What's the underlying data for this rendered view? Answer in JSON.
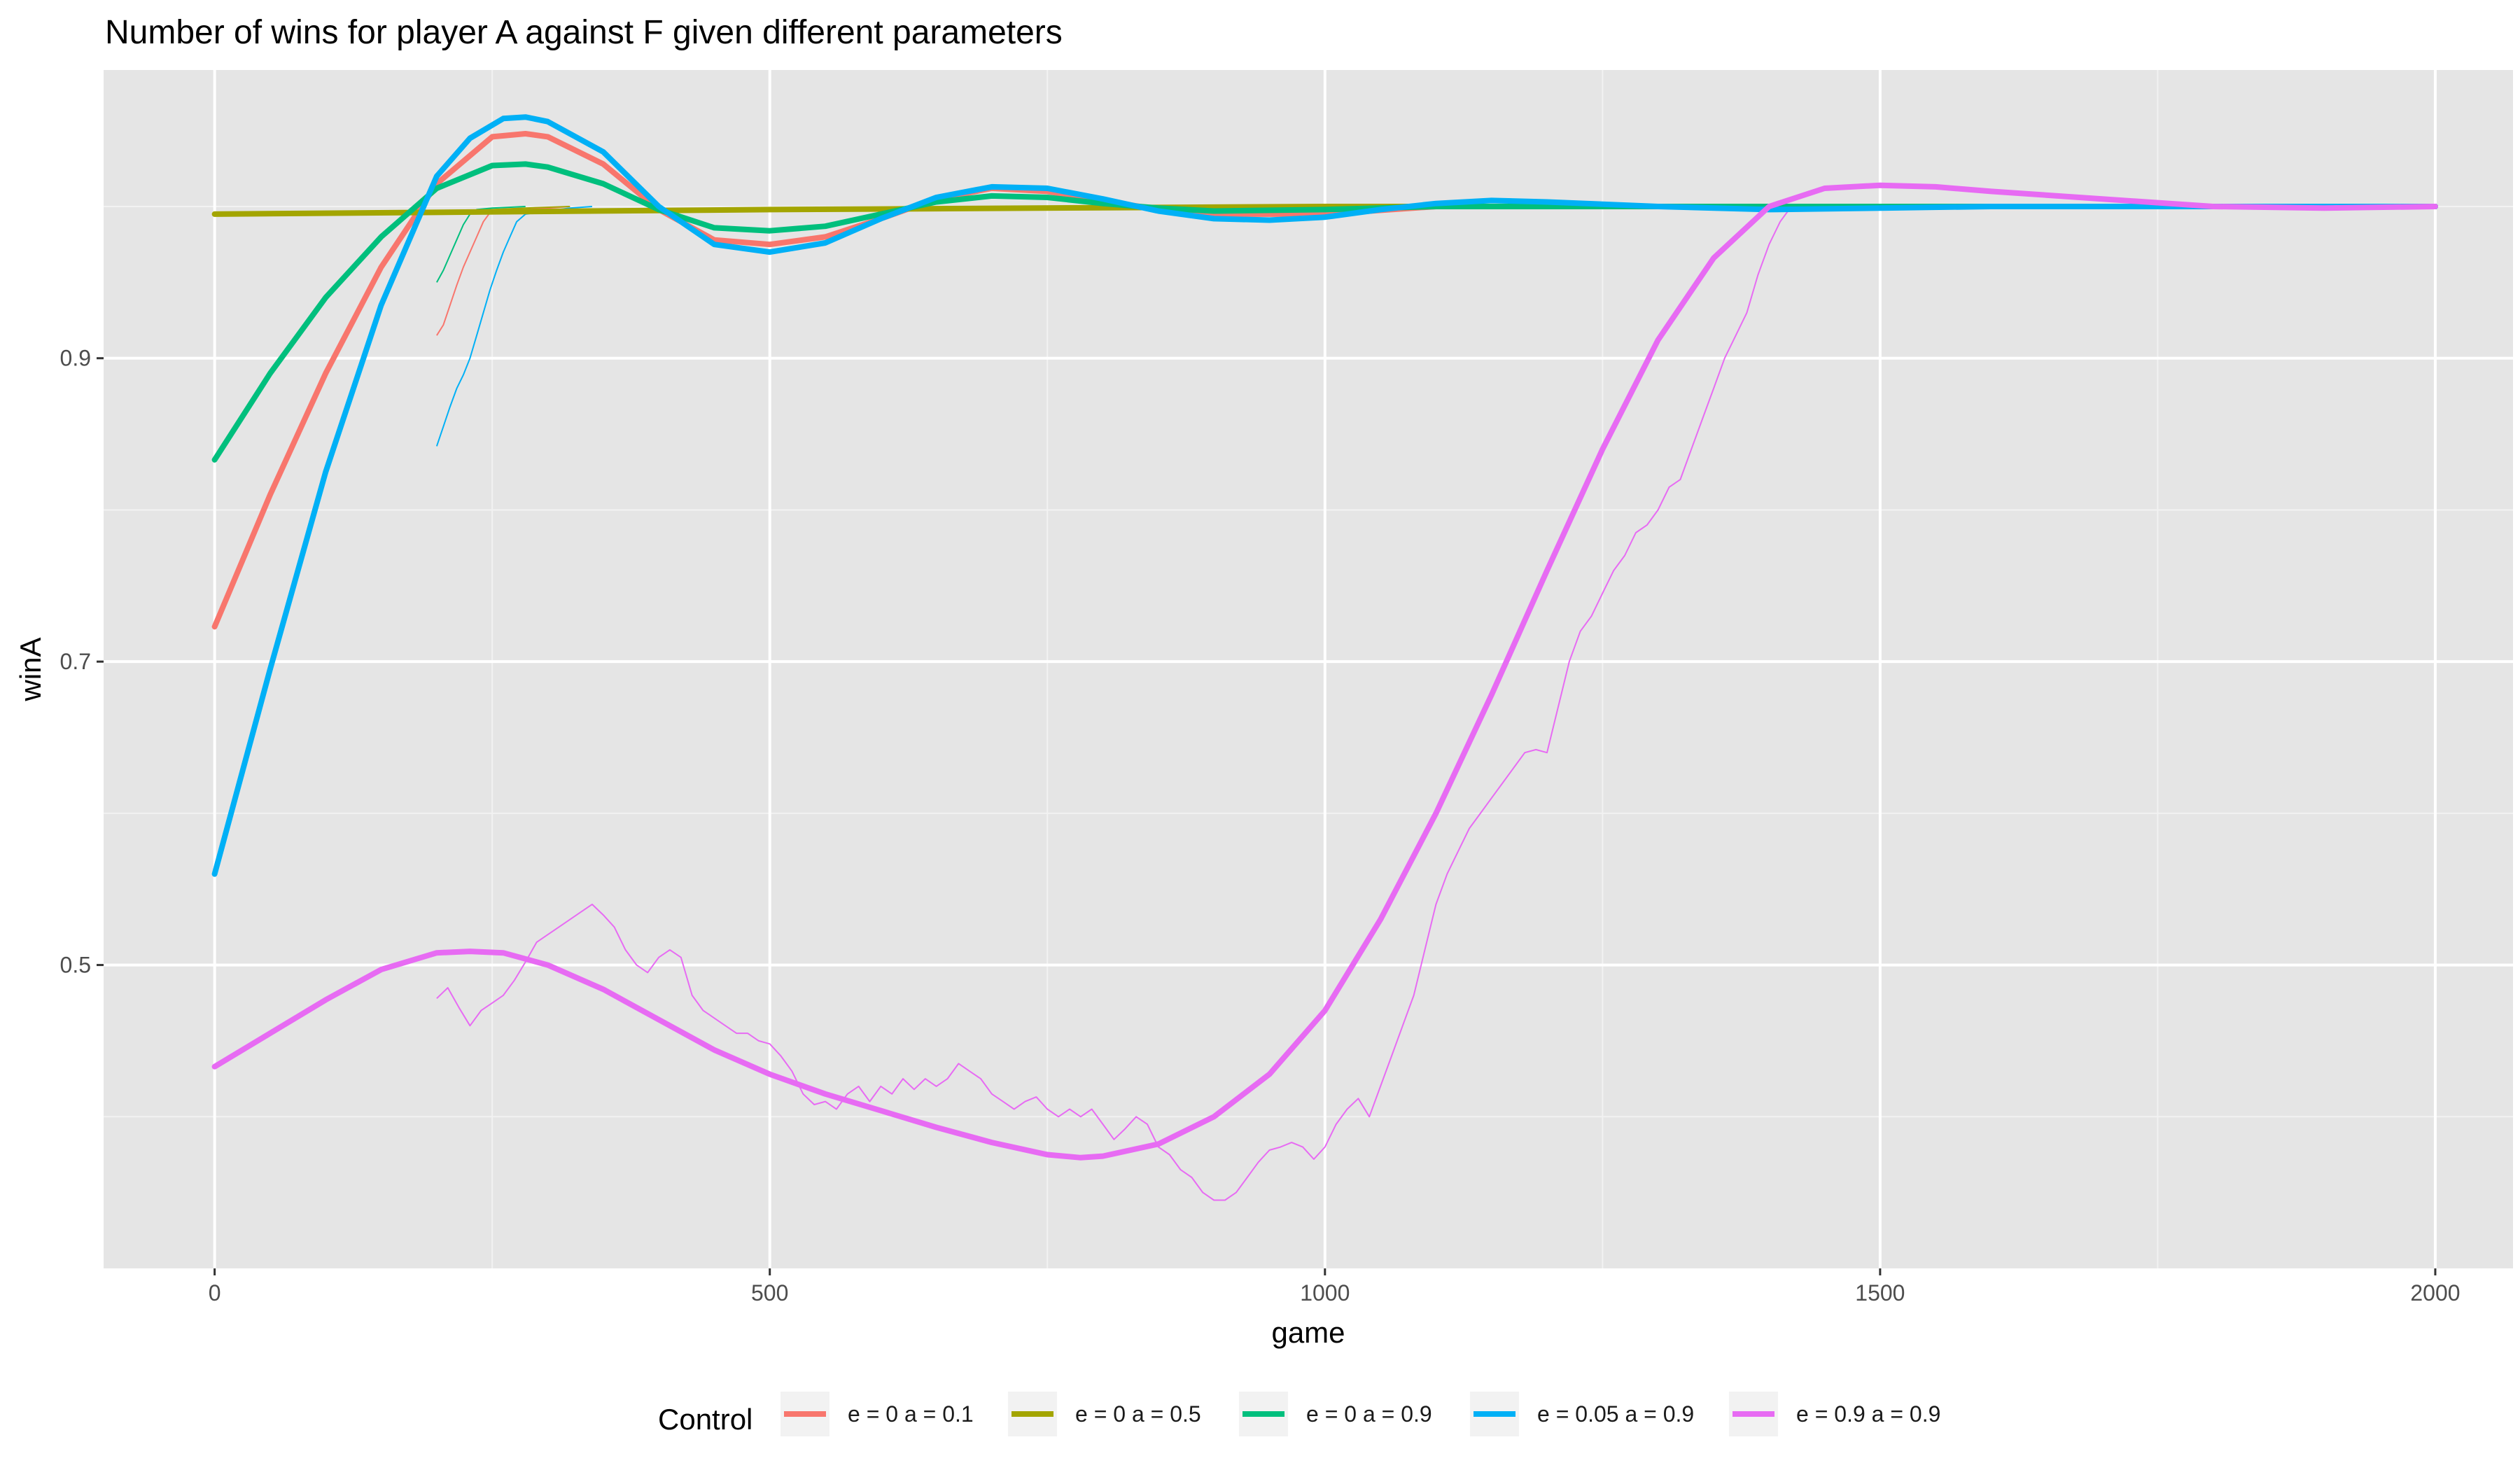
{
  "chart_data": {
    "type": "line",
    "title": "Number of wins for player A against F given different parameters",
    "xlabel": "game",
    "ylabel": "winA",
    "xlim": [
      -100,
      2070
    ],
    "ylim": [
      0.3,
      1.09
    ],
    "x_ticks": [
      0,
      500,
      1000,
      1500,
      2000
    ],
    "x_tick_labels": [
      "0",
      "500",
      "1000",
      "1500",
      "2000"
    ],
    "y_ticks": [
      0.5,
      0.7,
      0.9
    ],
    "y_tick_labels": [
      "0.5",
      "0.7",
      "0.9"
    ],
    "grid": true,
    "legend": {
      "title": "Control",
      "position": "bottom",
      "entries": [
        "e = 0 a = 0.1",
        "e = 0 a = 0.5",
        "e = 0 a = 0.9",
        "e = 0.05 a = 0.9",
        "e = 0.9 a = 0.9"
      ]
    },
    "series": [
      {
        "name": "e = 0 a = 0.1",
        "color": "#F8766D",
        "smooth": [
          [
            0,
            0.723
          ],
          [
            50,
            0.81
          ],
          [
            100,
            0.89
          ],
          [
            150,
            0.96
          ],
          [
            200,
            1.015
          ],
          [
            250,
            1.046
          ],
          [
            280,
            1.048
          ],
          [
            300,
            1.046
          ],
          [
            350,
            1.028
          ],
          [
            400,
            0.998
          ],
          [
            450,
            0.978
          ],
          [
            500,
            0.975
          ],
          [
            550,
            0.98
          ],
          [
            600,
            0.992
          ],
          [
            650,
            1.005
          ],
          [
            700,
            1.012
          ],
          [
            750,
            1.01
          ],
          [
            800,
            1.004
          ],
          [
            850,
            0.998
          ],
          [
            900,
            0.995
          ],
          [
            1000,
            0.995
          ],
          [
            1100,
            1.0
          ],
          [
            1200,
            1.0
          ],
          [
            1400,
            1.0
          ],
          [
            1600,
            1.0
          ],
          [
            1800,
            1.0
          ],
          [
            2000,
            1.0
          ]
        ],
        "raw": [
          [
            200,
            0.915
          ],
          [
            206,
            0.922
          ],
          [
            212,
            0.935
          ],
          [
            218,
            0.948
          ],
          [
            224,
            0.96
          ],
          [
            230,
            0.97
          ],
          [
            236,
            0.98
          ],
          [
            242,
            0.99
          ],
          [
            248,
            0.996
          ],
          [
            260,
            0.997
          ],
          [
            280,
            0.998
          ],
          [
            300,
            0.999
          ],
          [
            320,
            1.0
          ]
        ]
      },
      {
        "name": "e = 0 a = 0.5",
        "color": "#A3A500",
        "smooth": [
          [
            0,
            0.995
          ],
          [
            500,
            0.998
          ],
          [
            1000,
            1.0
          ],
          [
            1500,
            1.0
          ],
          [
            2000,
            1.0
          ]
        ],
        "raw": [
          [
            200,
            0.996
          ],
          [
            220,
            0.997
          ],
          [
            250,
            0.998
          ],
          [
            280,
            0.999
          ],
          [
            320,
            1.0
          ]
        ]
      },
      {
        "name": "e = 0 a = 0.9",
        "color": "#00BF7D",
        "smooth": [
          [
            0,
            0.833
          ],
          [
            50,
            0.89
          ],
          [
            100,
            0.94
          ],
          [
            150,
            0.98
          ],
          [
            200,
            1.012
          ],
          [
            250,
            1.027
          ],
          [
            280,
            1.028
          ],
          [
            300,
            1.026
          ],
          [
            350,
            1.015
          ],
          [
            400,
            0.998
          ],
          [
            450,
            0.986
          ],
          [
            500,
            0.984
          ],
          [
            550,
            0.987
          ],
          [
            600,
            0.995
          ],
          [
            650,
            1.003
          ],
          [
            700,
            1.007
          ],
          [
            750,
            1.006
          ],
          [
            800,
            1.002
          ],
          [
            850,
            0.999
          ],
          [
            900,
            0.997
          ],
          [
            1000,
            0.998
          ],
          [
            1100,
            1.0
          ],
          [
            1400,
            1.0
          ],
          [
            1600,
            1.0
          ],
          [
            1800,
            1.0
          ],
          [
            2000,
            1.0
          ]
        ],
        "raw": [
          [
            200,
            0.95
          ],
          [
            206,
            0.958
          ],
          [
            212,
            0.968
          ],
          [
            218,
            0.978
          ],
          [
            224,
            0.988
          ],
          [
            230,
            0.995
          ],
          [
            236,
            0.998
          ],
          [
            250,
            0.999
          ],
          [
            280,
            1.0
          ]
        ]
      },
      {
        "name": "e = 0.05 a = 0.9",
        "color": "#00B0F6",
        "smooth": [
          [
            0,
            0.56
          ],
          [
            50,
            0.695
          ],
          [
            100,
            0.825
          ],
          [
            150,
            0.935
          ],
          [
            200,
            1.02
          ],
          [
            230,
            1.045
          ],
          [
            260,
            1.058
          ],
          [
            280,
            1.059
          ],
          [
            300,
            1.056
          ],
          [
            350,
            1.036
          ],
          [
            400,
            1.0
          ],
          [
            450,
            0.975
          ],
          [
            500,
            0.97
          ],
          [
            550,
            0.976
          ],
          [
            600,
            0.992
          ],
          [
            650,
            1.006
          ],
          [
            700,
            1.013
          ],
          [
            750,
            1.012
          ],
          [
            800,
            1.005
          ],
          [
            850,
            0.997
          ],
          [
            900,
            0.992
          ],
          [
            950,
            0.991
          ],
          [
            1000,
            0.993
          ],
          [
            1050,
            0.998
          ],
          [
            1100,
            1.002
          ],
          [
            1150,
            1.004
          ],
          [
            1200,
            1.003
          ],
          [
            1300,
            1.0
          ],
          [
            1400,
            0.998
          ],
          [
            1500,
            0.999
          ],
          [
            1600,
            1.0
          ],
          [
            1800,
            1.0
          ],
          [
            2000,
            1.0
          ]
        ],
        "raw": [
          [
            200,
            0.842
          ],
          [
            206,
            0.855
          ],
          [
            212,
            0.868
          ],
          [
            218,
            0.88
          ],
          [
            224,
            0.889
          ],
          [
            230,
            0.9
          ],
          [
            236,
            0.915
          ],
          [
            242,
            0.93
          ],
          [
            248,
            0.945
          ],
          [
            254,
            0.958
          ],
          [
            260,
            0.97
          ],
          [
            266,
            0.98
          ],
          [
            272,
            0.99
          ],
          [
            280,
            0.995
          ],
          [
            300,
            0.997
          ],
          [
            320,
            0.999
          ],
          [
            340,
            1.0
          ]
        ]
      },
      {
        "name": "e = 0.9 a = 0.9",
        "color": "#E76BF3",
        "smooth": [
          [
            0,
            0.433
          ],
          [
            50,
            0.455
          ],
          [
            100,
            0.477
          ],
          [
            150,
            0.497
          ],
          [
            200,
            0.508
          ],
          [
            230,
            0.509
          ],
          [
            260,
            0.508
          ],
          [
            300,
            0.5
          ],
          [
            350,
            0.484
          ],
          [
            400,
            0.464
          ],
          [
            450,
            0.444
          ],
          [
            500,
            0.428
          ],
          [
            550,
            0.415
          ],
          [
            600,
            0.404
          ],
          [
            650,
            0.393
          ],
          [
            700,
            0.383
          ],
          [
            750,
            0.375
          ],
          [
            780,
            0.373
          ],
          [
            800,
            0.374
          ],
          [
            850,
            0.382
          ],
          [
            900,
            0.4
          ],
          [
            950,
            0.428
          ],
          [
            1000,
            0.47
          ],
          [
            1050,
            0.53
          ],
          [
            1100,
            0.6
          ],
          [
            1150,
            0.678
          ],
          [
            1200,
            0.76
          ],
          [
            1250,
            0.84
          ],
          [
            1300,
            0.912
          ],
          [
            1350,
            0.966
          ],
          [
            1400,
            1.0
          ],
          [
            1450,
            1.012
          ],
          [
            1500,
            1.014
          ],
          [
            1550,
            1.013
          ],
          [
            1600,
            1.01
          ],
          [
            1700,
            1.005
          ],
          [
            1800,
            1.0
          ],
          [
            1900,
            0.999
          ],
          [
            2000,
            1.0
          ]
        ],
        "raw": [
          [
            200,
            0.478
          ],
          [
            210,
            0.485
          ],
          [
            220,
            0.472
          ],
          [
            230,
            0.46
          ],
          [
            240,
            0.47
          ],
          [
            250,
            0.475
          ],
          [
            260,
            0.48
          ],
          [
            270,
            0.49
          ],
          [
            280,
            0.502
          ],
          [
            290,
            0.515
          ],
          [
            300,
            0.52
          ],
          [
            310,
            0.525
          ],
          [
            320,
            0.53
          ],
          [
            330,
            0.535
          ],
          [
            340,
            0.54
          ],
          [
            350,
            0.533
          ],
          [
            360,
            0.525
          ],
          [
            370,
            0.51
          ],
          [
            380,
            0.5
          ],
          [
            390,
            0.495
          ],
          [
            400,
            0.505
          ],
          [
            410,
            0.51
          ],
          [
            420,
            0.505
          ],
          [
            430,
            0.48
          ],
          [
            440,
            0.47
          ],
          [
            450,
            0.465
          ],
          [
            460,
            0.46
          ],
          [
            470,
            0.455
          ],
          [
            480,
            0.455
          ],
          [
            490,
            0.45
          ],
          [
            500,
            0.448
          ],
          [
            510,
            0.44
          ],
          [
            520,
            0.43
          ],
          [
            530,
            0.415
          ],
          [
            540,
            0.408
          ],
          [
            550,
            0.41
          ],
          [
            560,
            0.405
          ],
          [
            570,
            0.415
          ],
          [
            580,
            0.42
          ],
          [
            590,
            0.41
          ],
          [
            600,
            0.42
          ],
          [
            610,
            0.415
          ],
          [
            620,
            0.425
          ],
          [
            630,
            0.418
          ],
          [
            640,
            0.425
          ],
          [
            650,
            0.42
          ],
          [
            660,
            0.425
          ],
          [
            670,
            0.435
          ],
          [
            680,
            0.43
          ],
          [
            690,
            0.425
          ],
          [
            700,
            0.415
          ],
          [
            710,
            0.41
          ],
          [
            720,
            0.405
          ],
          [
            730,
            0.41
          ],
          [
            740,
            0.413
          ],
          [
            750,
            0.405
          ],
          [
            760,
            0.4
          ],
          [
            770,
            0.405
          ],
          [
            780,
            0.4
          ],
          [
            790,
            0.405
          ],
          [
            800,
            0.395
          ],
          [
            810,
            0.385
          ],
          [
            820,
            0.392
          ],
          [
            830,
            0.4
          ],
          [
            840,
            0.395
          ],
          [
            850,
            0.38
          ],
          [
            860,
            0.375
          ],
          [
            870,
            0.365
          ],
          [
            880,
            0.36
          ],
          [
            890,
            0.35
          ],
          [
            900,
            0.345
          ],
          [
            910,
            0.345
          ],
          [
            920,
            0.35
          ],
          [
            930,
            0.36
          ],
          [
            940,
            0.37
          ],
          [
            950,
            0.378
          ],
          [
            960,
            0.38
          ],
          [
            970,
            0.383
          ],
          [
            980,
            0.38
          ],
          [
            990,
            0.372
          ],
          [
            1000,
            0.38
          ],
          [
            1010,
            0.395
          ],
          [
            1020,
            0.405
          ],
          [
            1030,
            0.412
          ],
          [
            1040,
            0.4
          ],
          [
            1050,
            0.42
          ],
          [
            1060,
            0.44
          ],
          [
            1070,
            0.46
          ],
          [
            1080,
            0.48
          ],
          [
            1090,
            0.51
          ],
          [
            1100,
            0.54
          ],
          [
            1110,
            0.56
          ],
          [
            1120,
            0.575
          ],
          [
            1130,
            0.59
          ],
          [
            1140,
            0.6
          ],
          [
            1150,
            0.61
          ],
          [
            1160,
            0.62
          ],
          [
            1170,
            0.63
          ],
          [
            1180,
            0.64
          ],
          [
            1190,
            0.642
          ],
          [
            1200,
            0.64
          ],
          [
            1210,
            0.67
          ],
          [
            1220,
            0.7
          ],
          [
            1230,
            0.72
          ],
          [
            1240,
            0.73
          ],
          [
            1250,
            0.745
          ],
          [
            1260,
            0.76
          ],
          [
            1270,
            0.77
          ],
          [
            1280,
            0.785
          ],
          [
            1290,
            0.79
          ],
          [
            1300,
            0.8
          ],
          [
            1310,
            0.815
          ],
          [
            1320,
            0.82
          ],
          [
            1330,
            0.84
          ],
          [
            1340,
            0.86
          ],
          [
            1350,
            0.88
          ],
          [
            1360,
            0.9
          ],
          [
            1370,
            0.915
          ],
          [
            1380,
            0.93
          ],
          [
            1390,
            0.955
          ],
          [
            1400,
            0.975
          ],
          [
            1410,
            0.99
          ],
          [
            1420,
            1.0
          ]
        ]
      }
    ]
  }
}
